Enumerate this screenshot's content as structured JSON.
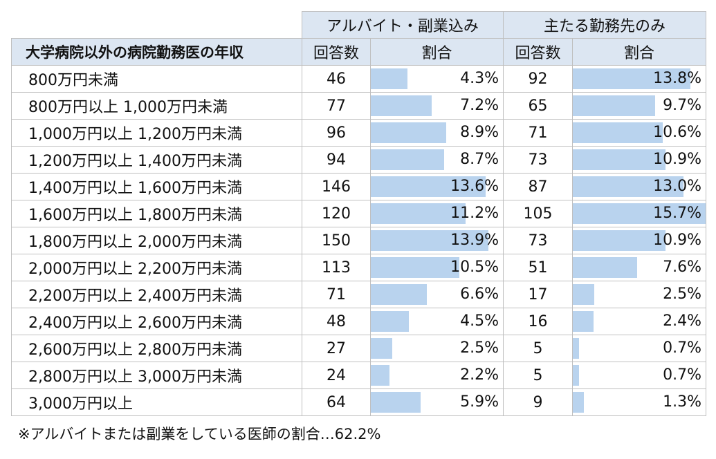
{
  "header": {
    "group1": "アルバイト・副業込み",
    "group2": "主たる勤務先のみ",
    "row_title": "大学病院以外の病院勤務医の年収",
    "count_label": "回答数",
    "ratio_label": "割合"
  },
  "note": "※アルバイトまたは副業をしている医師の割合…62.2%",
  "chart_data": {
    "type": "table",
    "categories": [
      "800万円未満",
      "800万円以上 1,000万円未満",
      "1,000万円以上 1,200万円未満",
      "1,200万円以上 1,400万円未満",
      "1,400万円以上 1,600万円未満",
      "1,600万円以上 1,800万円未満",
      "1,800万円以上 2,000万円未満",
      "2,000万円以上 2,200万円未満",
      "2,200万円以上 2,400万円未満",
      "2,400万円以上 2,600万円未満",
      "2,600万円以上 2,800万円未満",
      "2,800万円以上 3,000万円未満",
      "3,000万円以上"
    ],
    "series": [
      {
        "name": "アルバイト・副業込み",
        "counts": [
          "46",
          "77",
          "96",
          "94",
          "146",
          "120",
          "150",
          "113",
          "71",
          "48",
          "27",
          "24",
          "64"
        ],
        "ratios": [
          "4.3%",
          "7.2%",
          "8.9%",
          "8.7%",
          "13.6%",
          "11.2%",
          "13.9%",
          "10.5%",
          "6.6%",
          "4.5%",
          "2.5%",
          "2.2%",
          "5.9%"
        ],
        "values": [
          4.3,
          7.2,
          8.9,
          8.7,
          13.6,
          11.2,
          13.9,
          10.5,
          6.6,
          4.5,
          2.5,
          2.2,
          5.9
        ]
      },
      {
        "name": "主たる勤務先のみ",
        "counts": [
          "92",
          "65",
          "71",
          "73",
          "87",
          "105",
          "73",
          "51",
          "17",
          "16",
          "5",
          "5",
          "9"
        ],
        "ratios": [
          "13.8%",
          "9.7%",
          "10.6%",
          "10.9%",
          "13.0%",
          "15.7%",
          "10.9%",
          "7.6%",
          "2.5%",
          "2.4%",
          "0.7%",
          "0.7%",
          "1.3%"
        ],
        "values": [
          13.8,
          9.7,
          10.6,
          10.9,
          13.0,
          15.7,
          10.9,
          7.6,
          2.5,
          2.4,
          0.7,
          0.7,
          1.3
        ]
      }
    ],
    "bar_max": 15.7,
    "bar_color": "#b9d3ee"
  }
}
